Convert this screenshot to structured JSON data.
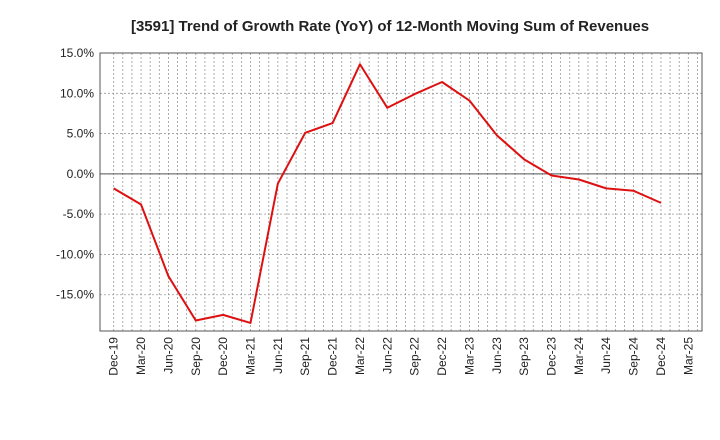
{
  "chart_data": {
    "type": "line",
    "title": "[3591]  Trend of Growth Rate (YoY) of 12-Month Moving Sum of Revenues",
    "xlabel": "",
    "ylabel": "",
    "x_tick_labels": [
      "Dec-19",
      "Mar-20",
      "Jun-20",
      "Sep-20",
      "Dec-20",
      "Mar-21",
      "Jun-21",
      "Sep-21",
      "Dec-21",
      "Mar-22",
      "Jun-22",
      "Sep-22",
      "Dec-22",
      "Mar-23",
      "Jun-23",
      "Sep-23",
      "Dec-23",
      "Mar-24",
      "Jun-24",
      "Sep-24",
      "Dec-24",
      "Mar-25"
    ],
    "y_ticks": [
      15,
      10,
      5,
      0,
      -5,
      -10,
      -15
    ],
    "y_tick_labels": [
      "15.0%",
      "10.0%",
      "5.0%",
      "0.0%",
      "-5.0%",
      "-10.0%",
      "-15.0%"
    ],
    "ylim": [
      -19.5,
      15.0
    ],
    "grid": true,
    "series": [
      {
        "color": "#dd1111",
        "x": [
          "Dec-19",
          "Mar-20",
          "Jun-20",
          "Sep-20",
          "Dec-20",
          "Mar-21",
          "Jun-21",
          "Sep-21",
          "Dec-21",
          "Mar-22",
          "Jun-22",
          "Sep-22",
          "Dec-22",
          "Mar-23",
          "Jun-23",
          "Sep-23",
          "Dec-23",
          "Mar-24",
          "Jun-24",
          "Sep-24",
          "Dec-24"
        ],
        "values": [
          -1.8,
          -3.8,
          -12.7,
          -18.2,
          -17.5,
          -18.5,
          -1.2,
          5.1,
          6.3,
          13.6,
          8.2,
          9.9,
          11.4,
          9.1,
          4.8,
          1.8,
          -0.2,
          -0.7,
          -1.8,
          -2.1,
          -3.6
        ]
      }
    ]
  }
}
